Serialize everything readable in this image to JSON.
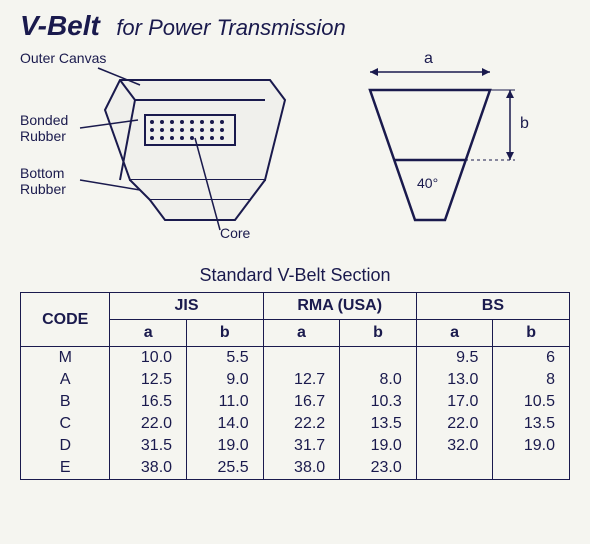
{
  "title": {
    "main": "V-Belt",
    "sub": "for Power Transmission"
  },
  "labels": {
    "outer_canvas": "Outer Canvas",
    "bonded_rubber": "Bonded",
    "bonded_rubber2": "Rubber",
    "bottom_rubber": "Bottom",
    "bottom_rubber2": "Rubber",
    "core": "Core",
    "dim_a": "a",
    "dim_b": "b",
    "angle": "40°"
  },
  "table": {
    "title": "Standard V-Belt Section",
    "headers": {
      "code": "CODE",
      "jis": "JIS",
      "rma": "RMA (USA)",
      "bs": "BS",
      "a": "a",
      "b": "b"
    },
    "rows": [
      {
        "code": "M",
        "jis_a": "10.0",
        "jis_b": "5.5",
        "rma_a": "",
        "rma_b": "",
        "bs_a": "9.5",
        "bs_b": "6"
      },
      {
        "code": "A",
        "jis_a": "12.5",
        "jis_b": "9.0",
        "rma_a": "12.7",
        "rma_b": "8.0",
        "bs_a": "13.0",
        "bs_b": "8"
      },
      {
        "code": "B",
        "jis_a": "16.5",
        "jis_b": "11.0",
        "rma_a": "16.7",
        "rma_b": "10.3",
        "bs_a": "17.0",
        "bs_b": "10.5"
      },
      {
        "code": "C",
        "jis_a": "22.0",
        "jis_b": "14.0",
        "rma_a": "22.2",
        "rma_b": "13.5",
        "bs_a": "22.0",
        "bs_b": "13.5"
      },
      {
        "code": "D",
        "jis_a": "31.5",
        "jis_b": "19.0",
        "rma_a": "31.7",
        "rma_b": "19.0",
        "bs_a": "32.0",
        "bs_b": "19.0"
      },
      {
        "code": "E",
        "jis_a": "38.0",
        "jis_b": "25.5",
        "rma_a": "38.0",
        "rma_b": "23.0",
        "bs_a": "",
        "bs_b": ""
      }
    ]
  },
  "colors": {
    "ink": "#1a1a4d",
    "bg": "#f5f5f0"
  },
  "profile_svg": {
    "stroke": "#1a1a4d",
    "fill": "none",
    "stroke_width": 2
  }
}
